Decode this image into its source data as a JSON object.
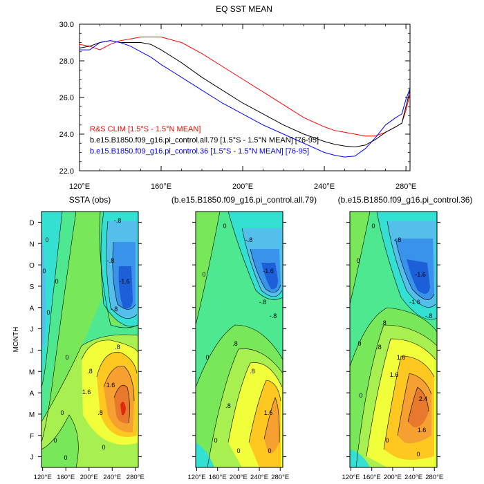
{
  "chart_data": [
    {
      "type": "line",
      "title": "EQ SST MEAN",
      "xlabel": "",
      "ylabel": "",
      "xlim": [
        120,
        282
      ],
      "ylim": [
        22.0,
        30.0
      ],
      "x_ticks": [
        120,
        160,
        200,
        240,
        280
      ],
      "x_tick_labels": [
        "120°E",
        "160°E",
        "200°E",
        "240°E",
        "280°E"
      ],
      "y_ticks": [
        22.0,
        24.0,
        26.0,
        28.0,
        30.0
      ],
      "y_tick_labels": [
        "22.0",
        "24.0",
        "26.0",
        "28.0",
        "30.0"
      ],
      "legend_position": "lower-left",
      "series": [
        {
          "name": "R&S CLIM [1.5°S - 1.5°N MEAN]",
          "color": "#ff0000",
          "x": [
            120,
            125,
            130,
            135,
            140,
            145,
            150,
            155,
            160,
            170,
            180,
            190,
            200,
            210,
            220,
            230,
            240,
            245,
            250,
            255,
            260,
            265,
            270,
            275,
            278,
            280,
            282
          ],
          "y": [
            28.9,
            28.8,
            28.6,
            28.9,
            29.1,
            29.2,
            29.3,
            29.3,
            29.3,
            29.0,
            28.4,
            27.7,
            27.0,
            26.3,
            25.6,
            24.9,
            24.4,
            24.2,
            24.1,
            24.0,
            23.9,
            23.9,
            24.1,
            24.4,
            24.6,
            25.3,
            26.2
          ]
        },
        {
          "name": "b.e15.B1850.f09_g16.pi_control.all.79 [1.5°S - 1.5°N MEAN] [76-95]",
          "color": "#000000",
          "x": [
            120,
            125,
            130,
            135,
            140,
            145,
            150,
            155,
            160,
            170,
            180,
            190,
            200,
            210,
            220,
            230,
            240,
            245,
            250,
            255,
            260,
            265,
            270,
            275,
            278,
            280,
            282
          ],
          "y": [
            28.7,
            28.8,
            29.0,
            29.1,
            29.0,
            29.0,
            29.0,
            28.9,
            28.6,
            27.9,
            27.1,
            26.4,
            25.7,
            25.1,
            24.5,
            24.0,
            23.6,
            23.45,
            23.35,
            23.3,
            23.4,
            23.7,
            24.1,
            24.4,
            24.6,
            25.5,
            26.4
          ]
        },
        {
          "name": "b.e15.B1850.f09_g16.pi_control.36 [1.5°S - 1.5°N MEAN] [76-95]",
          "color": "#0000ff",
          "x": [
            120,
            125,
            130,
            135,
            140,
            145,
            150,
            155,
            160,
            170,
            180,
            190,
            200,
            210,
            220,
            230,
            240,
            245,
            250,
            255,
            260,
            265,
            270,
            275,
            278,
            280,
            282
          ],
          "y": [
            28.6,
            28.6,
            29.0,
            29.1,
            29.0,
            28.8,
            28.5,
            28.2,
            27.8,
            27.1,
            26.4,
            25.7,
            25.1,
            24.5,
            24.0,
            23.5,
            23.0,
            22.85,
            22.75,
            22.8,
            23.2,
            23.8,
            24.5,
            24.9,
            25.1,
            25.9,
            26.5
          ]
        }
      ]
    },
    {
      "type": "heatmap",
      "title": "SSTA (obs)",
      "ylabel": "MONTH",
      "x_tick_labels": [
        "120°E",
        "160°E",
        "200°E",
        "240°E",
        "280°E"
      ],
      "y_tick_labels": [
        "J",
        "F",
        "M",
        "A",
        "M",
        "J",
        "J",
        "A",
        "S",
        "O",
        "N",
        "D"
      ],
      "contour_labels": [
        "0",
        "0",
        "0",
        "0",
        "0",
        "-.8",
        "-.8",
        "-1.6",
        "-.8",
        ".8",
        ".8",
        "1.6",
        "1.6",
        ".8",
        "0",
        "0",
        "0",
        "0"
      ],
      "palette": [
        "#1d5fd8",
        "#3a93ea",
        "#55bfeb",
        "#33e0d2",
        "#4ee890",
        "#78e85a",
        "#a8f050",
        "#f0ff3a",
        "#ffc820",
        "#f5a030",
        "#e8782c",
        "#e02810"
      ]
    },
    {
      "type": "heatmap",
      "title": "(b.e15.B1850.f09_g16.pi_control.all.79)",
      "ylabel": "",
      "x_tick_labels": [
        "120°E",
        "160°E",
        "200°E",
        "240°E",
        "280°E"
      ],
      "y_tick_labels": [
        "J",
        "F",
        "M",
        "A",
        "M",
        "J",
        "J",
        "A",
        "S",
        "O",
        "N",
        "D"
      ],
      "contour_labels": [
        "0",
        "0",
        "-.8",
        "-1.6",
        "-.8",
        "-.8",
        "0",
        ".8",
        ".8",
        ".8",
        "1.6",
        "0",
        "0",
        "0"
      ],
      "palette": [
        "#1d5fd8",
        "#3a93ea",
        "#55bfeb",
        "#33e0d2",
        "#4ee890",
        "#78e85a",
        "#a8f050",
        "#f0ff3a",
        "#ffc820",
        "#f5a030"
      ]
    },
    {
      "type": "heatmap",
      "title": "(b.e15.B1850.f09_g16.pi_control.36)",
      "ylabel": "",
      "x_tick_labels": [
        "120°E",
        "160°E",
        "200°E",
        "240°E",
        "280°E"
      ],
      "y_tick_labels": [
        "J",
        "F",
        "M",
        "A",
        "M",
        "J",
        "J",
        "A",
        "S",
        "O",
        "N",
        "D"
      ],
      "contour_labels": [
        "0",
        "0",
        "-.8",
        "-1.6",
        "-1.6",
        "-.8",
        "0",
        ".8",
        ".8",
        "1.6",
        "1.6",
        "2.4",
        "1.6",
        "0",
        "0",
        "0"
      ],
      "palette": [
        "#1d5fd8",
        "#3a93ea",
        "#55bfeb",
        "#33e0d2",
        "#4ee890",
        "#78e85a",
        "#a8f050",
        "#f0ff3a",
        "#ffc820",
        "#f5a030",
        "#e8782c"
      ]
    }
  ]
}
